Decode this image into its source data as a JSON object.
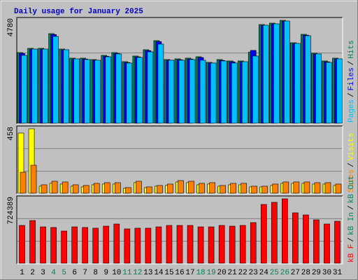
{
  "chart_data": [
    {
      "type": "bar",
      "title": "Daily usage for January 2025",
      "ylim": [
        0,
        4780
      ],
      "yticks": [
        4780
      ],
      "legend_separator": "/",
      "series": [
        {
          "name": "Pages",
          "color": "#00c0ff",
          "values": [
            3154,
            3447,
            3447,
            4032,
            3415,
            2992,
            2959,
            2927,
            3089,
            3220,
            2797,
            3057,
            3317,
            3675,
            2927,
            2927,
            2959,
            2927,
            2797,
            2894,
            2797,
            2862,
            3122,
            4553,
            4618,
            4748,
            3707,
            4065,
            3220,
            2829,
            2992
          ]
        },
        {
          "name": "Files",
          "color": "#0000ff",
          "values": [
            3240,
            3440,
            3440,
            4120,
            3400,
            2980,
            2980,
            2920,
            3110,
            3240,
            2820,
            3080,
            3370,
            3790,
            2920,
            2950,
            2980,
            3050,
            2790,
            2920,
            2850,
            2850,
            3382,
            4540,
            4610,
            4740,
            3700,
            4090,
            3210,
            2850,
            2980
          ]
        },
        {
          "name": "Hits",
          "color": "#00805c",
          "values": [
            3284,
            3480,
            3480,
            4162,
            3447,
            3024,
            3024,
            2959,
            3154,
            3284,
            2862,
            3122,
            3415,
            3837,
            2959,
            2992,
            3024,
            3089,
            2829,
            2959,
            2894,
            2894,
            3300,
            4585,
            4650,
            4780,
            3740,
            4130,
            3252,
            2894,
            3024
          ]
        }
      ]
    },
    {
      "type": "bar",
      "ylim": [
        0,
        458
      ],
      "yticks": [
        458
      ],
      "legend_separator": "/",
      "series": [
        {
          "name": "Sites",
          "color": "#ff8000",
          "values": [
            149,
            199,
            60,
            85,
            80,
            60,
            55,
            70,
            75,
            75,
            40,
            85,
            45,
            55,
            65,
            90,
            85,
            70,
            75,
            55,
            70,
            70,
            50,
            50,
            65,
            80,
            80,
            80,
            75,
            75,
            65
          ]
        },
        {
          "name": "Visits",
          "color": "#ffff00",
          "values": [
            428,
            458,
            50,
            70,
            65,
            50,
            45,
            60,
            65,
            65,
            35,
            75,
            40,
            50,
            55,
            80,
            75,
            60,
            65,
            50,
            60,
            60,
            45,
            45,
            55,
            70,
            70,
            70,
            65,
            65,
            55
          ]
        }
      ]
    },
    {
      "type": "bar",
      "ylim": [
        0,
        724389
      ],
      "yticks": [
        724389
      ],
      "legend_separator": "/",
      "categories": [
        "1",
        "2",
        "3",
        "4",
        "5",
        "6",
        "7",
        "8",
        "9",
        "10",
        "11",
        "12",
        "13",
        "14",
        "15",
        "16",
        "17",
        "18",
        "19",
        "20",
        "21",
        "22",
        "23",
        "24",
        "25",
        "26",
        "27",
        "28",
        "29",
        "30",
        "31"
      ],
      "category_colors": [
        "#000000",
        "#000000",
        "#000000",
        "#00805c",
        "#00805c",
        "#000000",
        "#000000",
        "#000000",
        "#000000",
        "#000000",
        "#00805c",
        "#00805c",
        "#000000",
        "#000000",
        "#000000",
        "#000000",
        "#000000",
        "#00805c",
        "#00805c",
        "#000000",
        "#000000",
        "#000000",
        "#000000",
        "#000000",
        "#00805c",
        "#00805c",
        "#000000",
        "#000000",
        "#000000",
        "#000000",
        "#000000"
      ],
      "series": [
        {
          "name": "kB F",
          "color": "#ff0000",
          "values": [
            425000,
            480000,
            409000,
            402000,
            362000,
            409000,
            402000,
            394000,
            417000,
            441000,
            386000,
            394000,
            394000,
            409000,
            425000,
            425000,
            425000,
            409000,
            409000,
            425000,
            417000,
            425000,
            457000,
            661000,
            685000,
            724389,
            567000,
            543000,
            488000,
            441000,
            472000
          ]
        },
        {
          "name": "kB In",
          "color": "#00805c"
        },
        {
          "name": "kB Out",
          "color": "#008060"
        }
      ]
    }
  ]
}
